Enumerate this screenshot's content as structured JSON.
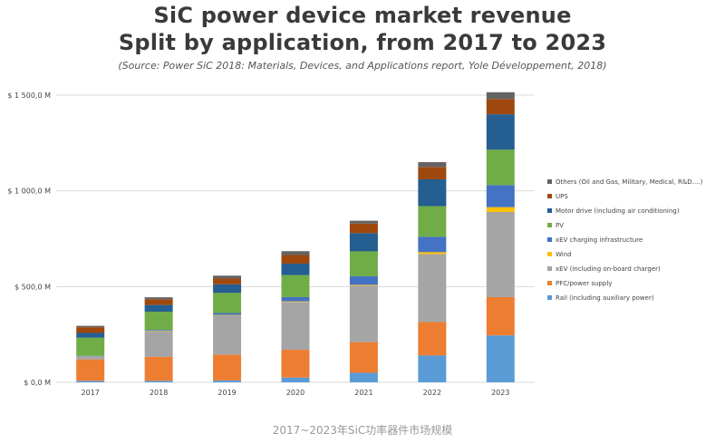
{
  "chart_data": {
    "type": "bar",
    "stacked": true,
    "title": "SiC power device market revenue",
    "subtitle": "Split by application, from 2017 to 2023",
    "source": "(Source: Power SiC 2018: Materials, Devices, and Applications report, Yole Développement, 2018)",
    "categories": [
      "2017",
      "2018",
      "2019",
      "2020",
      "2021",
      "2022",
      "2023"
    ],
    "y_ticks": [
      {
        "value": 0,
        "label": "$ 0,0 M"
      },
      {
        "value": 500,
        "label": "$ 500,0 M"
      },
      {
        "value": 1000,
        "label": "$ 1 000,0 M"
      },
      {
        "value": 1500,
        "label": "$ 1 500,0 M"
      }
    ],
    "ylim": [
      0,
      1500
    ],
    "gridlines": true,
    "legend_position": "right",
    "series": [
      {
        "name": "Rail (including auxiliary power)",
        "color": "#5b9bd5",
        "values": [
          8,
          8,
          10,
          25,
          50,
          140,
          245
        ]
      },
      {
        "name": "PFC/power supply",
        "color": "#ed7d31",
        "values": [
          112,
          125,
          135,
          145,
          160,
          175,
          200
        ]
      },
      {
        "name": "xEV (including on-board charger)",
        "color": "#a5a5a5",
        "values": [
          15,
          135,
          205,
          250,
          295,
          355,
          445
        ]
      },
      {
        "name": "Wind",
        "color": "#ffc000",
        "values": [
          1,
          2,
          2,
          3,
          4,
          10,
          25
        ]
      },
      {
        "name": "xEV charging infrastructure",
        "color": "#4472c4",
        "values": [
          2,
          4,
          10,
          22,
          45,
          80,
          115
        ]
      },
      {
        "name": "PV",
        "color": "#70ad47",
        "values": [
          95,
          95,
          105,
          115,
          130,
          160,
          185
        ]
      },
      {
        "name": "Motor drive (including air conditioning)",
        "color": "#255e91",
        "values": [
          25,
          35,
          45,
          60,
          95,
          140,
          185
        ]
      },
      {
        "name": "UPS",
        "color": "#9e480e",
        "values": [
          30,
          30,
          30,
          45,
          50,
          65,
          80
        ]
      },
      {
        "name": "Others (Oil and Gas, Military, Medical, R&D....)",
        "color": "#636363",
        "values": [
          7,
          10,
          15,
          20,
          15,
          25,
          35
        ]
      }
    ]
  },
  "caption": "2017~2023年SiC功率器件市场规模"
}
